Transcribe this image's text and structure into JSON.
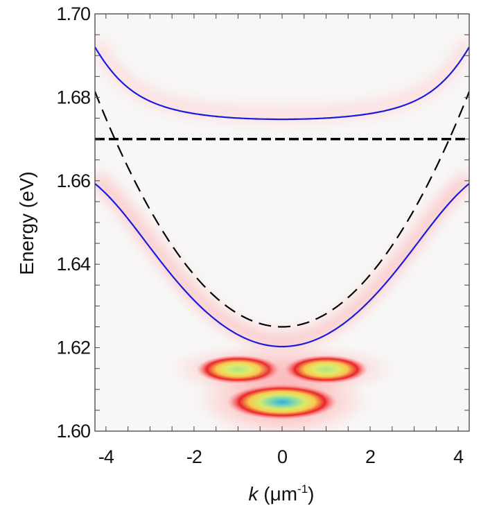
{
  "chart_data": {
    "type": "heatmap",
    "title": "",
    "xlabel_italic": "k",
    "xlabel_unit": " (μm",
    "xlabel_sup": "-1",
    "xlabel_close": ")",
    "ylabel": "Energy (eV)",
    "xlim": [
      -4.25,
      4.25
    ],
    "ylim": [
      1.6,
      1.7
    ],
    "x_ticks": [
      "-4",
      "-2",
      "0",
      "2",
      "4"
    ],
    "x_tick_values": [
      -4,
      -2,
      0,
      2,
      4
    ],
    "y_ticks": [
      "1.60",
      "1.62",
      "1.64",
      "1.66",
      "1.68",
      "1.70"
    ],
    "y_tick_values": [
      1.6,
      1.62,
      1.64,
      1.66,
      1.68,
      1.7
    ],
    "grid": false,
    "curves": {
      "exciton_energy": 1.67,
      "photon_energy_k0": 1.625,
      "photon_curvature": 0.00312,
      "rabi_splitting": 0.0307,
      "upper_polariton_k0": 1.6745,
      "lower_polariton_k0": 1.6205
    },
    "series": [
      {
        "style": "solid",
        "color": "#1a1adf",
        "branch": "upper"
      },
      {
        "style": "solid",
        "color": "#1a1adf",
        "branch": "lower"
      },
      {
        "style": "dashed",
        "color": "#000000",
        "branch": "photon"
      },
      {
        "style": "dashed-thick",
        "color": "#000000",
        "branch": "exciton"
      }
    ],
    "emission_spots": [
      {
        "k": 0.0,
        "energy": 1.607,
        "k_halfwidth": 1.25,
        "e_halfwidth": 0.0027,
        "peak": 1.0
      },
      {
        "k": -1.0,
        "energy": 1.6148,
        "k_halfwidth": 0.95,
        "e_halfwidth": 0.0022,
        "peak": 0.75
      },
      {
        "k": 1.0,
        "energy": 1.6148,
        "k_halfwidth": 0.95,
        "e_halfwidth": 0.0022,
        "peak": 0.75
      }
    ],
    "colormap": [
      "#f8f6f6",
      "#ff9a9a",
      "#e8232a",
      "#f7e060",
      "#9ee08a",
      "#30aee6"
    ]
  }
}
